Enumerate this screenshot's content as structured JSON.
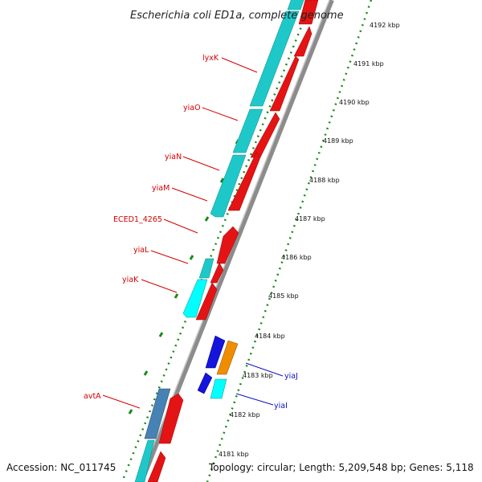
{
  "title": "Escherichia coli ED1a, complete genome",
  "footer": {
    "accession": "Accession: NC_011745",
    "topology": "Topology: circular; Length: 5,209,548 bp; Genes: 5,118"
  },
  "scale": {
    "unit": "kbp",
    "ticks": [
      "4192 kbp",
      "4191 kbp",
      "4190 kbp",
      "4189 kbp",
      "4188 kbp",
      "4187 kbp",
      "4186 kbp",
      "4185 kbp",
      "4184 kbp",
      "4183 kbp",
      "4182 kbp",
      "4181 kbp"
    ]
  },
  "gene_labels": [
    {
      "name": "lyxK",
      "color": "#d40000"
    },
    {
      "name": "yiaO",
      "color": "#d40000"
    },
    {
      "name": "yiaN",
      "color": "#d40000"
    },
    {
      "name": "yiaM",
      "color": "#d40000"
    },
    {
      "name": "ECED1_4265",
      "color": "#d40000"
    },
    {
      "name": "yiaL",
      "color": "#d40000"
    },
    {
      "name": "yiaK",
      "color": "#d40000"
    },
    {
      "name": "yiaJ",
      "color": "#1010c8"
    },
    {
      "name": "yiaI",
      "color": "#1010c8"
    },
    {
      "name": "avtA",
      "color": "#d40000"
    }
  ],
  "colors": {
    "cyan": "#1ec8c8",
    "red": "#e41414",
    "blue": "#1414dc",
    "orange": "#f08c00",
    "steel": "#4682b4",
    "backbone": "#8c8c8c",
    "dots": "#1a8a1a",
    "label_red": "#d40000",
    "label_blue": "#1010c8"
  }
}
